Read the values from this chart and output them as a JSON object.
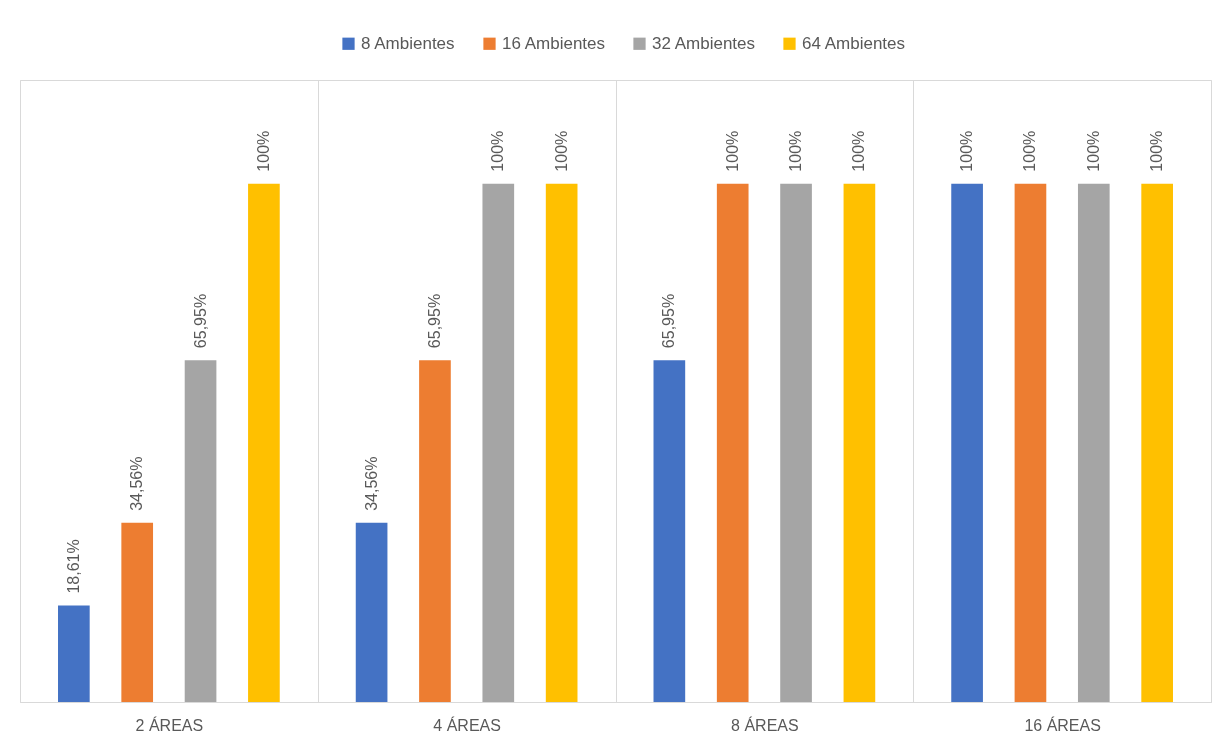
{
  "chart_data": {
    "type": "bar",
    "categories": [
      "2 ÁREAS",
      "4 ÁREAS",
      "8 ÁREAS",
      "16 ÁREAS"
    ],
    "series": [
      {
        "name": "8 Ambientes",
        "color": "#4472c4",
        "values": [
          18.61,
          34.56,
          65.95,
          100
        ],
        "value_labels": [
          "18,61%",
          "34,56%",
          "65,95%",
          "100%"
        ]
      },
      {
        "name": "16 Ambientes",
        "color": "#ed7d31",
        "values": [
          34.56,
          65.95,
          100,
          100
        ],
        "value_labels": [
          "34,56%",
          "65,95%",
          "100%",
          "100%"
        ]
      },
      {
        "name": "32 Ambientes",
        "color": "#a5a5a5",
        "values": [
          65.95,
          100,
          100,
          100
        ],
        "value_labels": [
          "65,95%",
          "100%",
          "100%",
          "100%"
        ]
      },
      {
        "name": "64 Ambientes",
        "color": "#ffc000",
        "values": [
          100,
          100,
          100,
          100
        ],
        "value_labels": [
          "100%",
          "100%",
          "100%",
          "100%"
        ]
      }
    ],
    "grid": "x",
    "legend": "top"
  }
}
